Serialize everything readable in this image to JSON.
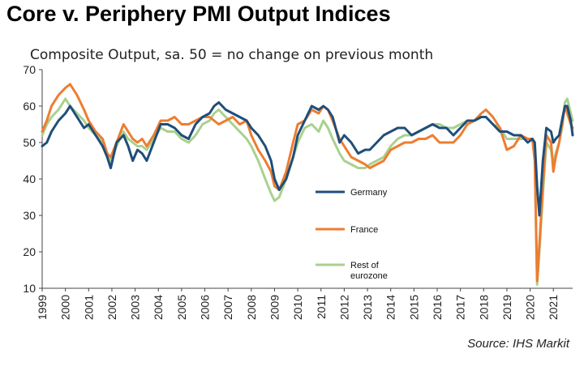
{
  "chart_data": {
    "type": "line",
    "title": "Core v. Periphery PMI Output Indices",
    "subtitle": "Composite Output, sa. 50 = no change on previous month",
    "source": "Source: IHS Markit",
    "ylim": [
      10,
      70
    ],
    "yticks": [
      10,
      20,
      30,
      40,
      50,
      60,
      70
    ],
    "xlim": [
      1999.0,
      2021.83
    ],
    "xticks": [
      "1999",
      "2000",
      "2001",
      "2002",
      "2003",
      "2004",
      "2005",
      "2006",
      "2007",
      "2008",
      "2009",
      "2010",
      "2011",
      "2012",
      "2013",
      "2014",
      "2015",
      "2016",
      "2017",
      "2018",
      "2019",
      "2020",
      "2021"
    ],
    "colors": {
      "Germany": "#1f4e79",
      "France": "#ed7d31",
      "Rest of eurozone": "#a9d18e"
    },
    "series": [
      {
        "name": "Germany",
        "legend": [
          "Germany"
        ],
        "x": [
          1999.0,
          1999.2,
          1999.4,
          1999.7,
          2000.0,
          2000.2,
          2000.5,
          2000.8,
          2001.0,
          2001.3,
          2001.6,
          2001.8,
          2001.95,
          2002.2,
          2002.5,
          2002.7,
          2002.9,
          2003.1,
          2003.3,
          2003.5,
          2003.8,
          2004.1,
          2004.4,
          2004.7,
          2005.0,
          2005.3,
          2005.6,
          2005.9,
          2006.2,
          2006.4,
          2006.6,
          2006.9,
          2007.2,
          2007.5,
          2007.8,
          2008.0,
          2008.3,
          2008.6,
          2008.85,
          2009.0,
          2009.2,
          2009.5,
          2009.8,
          2010.0,
          2010.3,
          2010.6,
          2010.9,
          2011.1,
          2011.3,
          2011.5,
          2011.8,
          2012.0,
          2012.3,
          2012.6,
          2012.9,
          2013.1,
          2013.4,
          2013.7,
          2014.0,
          2014.3,
          2014.6,
          2014.9,
          2015.2,
          2015.5,
          2015.8,
          2016.1,
          2016.4,
          2016.7,
          2017.0,
          2017.3,
          2017.6,
          2017.9,
          2018.1,
          2018.4,
          2018.7,
          2019.0,
          2019.3,
          2019.6,
          2019.9,
          2020.1,
          2020.2,
          2020.3,
          2020.4,
          2020.55,
          2020.7,
          2020.9,
          2021.0,
          2021.1,
          2021.25,
          2021.4,
          2021.5,
          2021.6,
          2021.75,
          2021.83
        ],
        "y": [
          49,
          50,
          53,
          56,
          58,
          60,
          57,
          54,
          55,
          52,
          49,
          46,
          43,
          50,
          52,
          49,
          45,
          48,
          47,
          45,
          50,
          55,
          55,
          54,
          52,
          51,
          55,
          57,
          58,
          60,
          61,
          59,
          58,
          57,
          56,
          54,
          52,
          49,
          45,
          40,
          37,
          40,
          46,
          52,
          56,
          60,
          59,
          60,
          59,
          57,
          50,
          52,
          50,
          47,
          48,
          48,
          50,
          52,
          53,
          54,
          54,
          52,
          53,
          54,
          55,
          54,
          54,
          52,
          54,
          56,
          56,
          57,
          57,
          55,
          53,
          53,
          52,
          52,
          50,
          51,
          50,
          38,
          30,
          45,
          54,
          53,
          50,
          51,
          52,
          57,
          60,
          60,
          56,
          52
        ]
      },
      {
        "name": "France",
        "legend": [
          "France"
        ],
        "x": [
          1999.0,
          1999.2,
          1999.4,
          1999.7,
          2000.0,
          2000.2,
          2000.5,
          2000.8,
          2001.0,
          2001.3,
          2001.6,
          2001.8,
          2001.95,
          2002.2,
          2002.5,
          2002.7,
          2002.9,
          2003.1,
          2003.3,
          2003.5,
          2003.8,
          2004.1,
          2004.4,
          2004.7,
          2005.0,
          2005.3,
          2005.6,
          2005.9,
          2006.2,
          2006.4,
          2006.6,
          2006.9,
          2007.2,
          2007.5,
          2007.8,
          2008.0,
          2008.3,
          2008.6,
          2008.85,
          2009.0,
          2009.2,
          2009.5,
          2009.8,
          2010.0,
          2010.3,
          2010.6,
          2010.9,
          2011.1,
          2011.3,
          2011.5,
          2011.8,
          2012.0,
          2012.3,
          2012.6,
          2012.9,
          2013.1,
          2013.4,
          2013.7,
          2014.0,
          2014.3,
          2014.6,
          2014.9,
          2015.2,
          2015.5,
          2015.8,
          2016.1,
          2016.4,
          2016.7,
          2017.0,
          2017.3,
          2017.6,
          2017.9,
          2018.1,
          2018.4,
          2018.7,
          2019.0,
          2019.3,
          2019.6,
          2019.9,
          2020.1,
          2020.2,
          2020.3,
          2020.4,
          2020.55,
          2020.7,
          2020.9,
          2021.0,
          2021.1,
          2021.25,
          2021.4,
          2021.5,
          2021.6,
          2021.75,
          2021.83
        ],
        "y": [
          53,
          56,
          60,
          63,
          65,
          66,
          63,
          59,
          56,
          53,
          51,
          47,
          46,
          50,
          55,
          53,
          51,
          50,
          51,
          49,
          52,
          56,
          56,
          57,
          55,
          55,
          56,
          57,
          57,
          56,
          55,
          56,
          57,
          55,
          56,
          52,
          48,
          45,
          42,
          38,
          37,
          42,
          50,
          55,
          56,
          59,
          58,
          60,
          59,
          56,
          51,
          49,
          46,
          45,
          44,
          43,
          44,
          45,
          48,
          49,
          50,
          50,
          51,
          51,
          52,
          50,
          50,
          50,
          52,
          55,
          56,
          58,
          59,
          57,
          54,
          48,
          49,
          52,
          51,
          51,
          45,
          12,
          22,
          38,
          52,
          50,
          42,
          46,
          50,
          56,
          60,
          58,
          55,
          54
        ]
      },
      {
        "name": "Rest of eurozone",
        "legend": [
          "Rest of",
          "eurozone"
        ],
        "x": [
          1999.0,
          1999.2,
          1999.4,
          1999.7,
          2000.0,
          2000.2,
          2000.5,
          2000.8,
          2001.0,
          2001.3,
          2001.6,
          2001.8,
          2001.95,
          2002.2,
          2002.5,
          2002.7,
          2002.9,
          2003.1,
          2003.3,
          2003.5,
          2003.8,
          2004.1,
          2004.4,
          2004.7,
          2005.0,
          2005.3,
          2005.6,
          2005.9,
          2006.2,
          2006.4,
          2006.6,
          2006.9,
          2007.2,
          2007.5,
          2007.8,
          2008.0,
          2008.3,
          2008.6,
          2008.85,
          2009.0,
          2009.2,
          2009.5,
          2009.8,
          2010.0,
          2010.3,
          2010.6,
          2010.9,
          2011.1,
          2011.3,
          2011.5,
          2011.8,
          2012.0,
          2012.3,
          2012.6,
          2012.9,
          2013.1,
          2013.4,
          2013.7,
          2014.0,
          2014.3,
          2014.6,
          2014.9,
          2015.2,
          2015.5,
          2015.8,
          2016.1,
          2016.4,
          2016.7,
          2017.0,
          2017.3,
          2017.6,
          2017.9,
          2018.1,
          2018.4,
          2018.7,
          2019.0,
          2019.3,
          2019.6,
          2019.9,
          2020.1,
          2020.2,
          2020.3,
          2020.4,
          2020.55,
          2020.7,
          2020.9,
          2021.0,
          2021.1,
          2021.25,
          2021.4,
          2021.5,
          2021.6,
          2021.75,
          2021.83
        ],
        "y": [
          52,
          55,
          57,
          59,
          62,
          60,
          58,
          56,
          54,
          52,
          50,
          47,
          45,
          49,
          53,
          51,
          50,
          49,
          49,
          48,
          51,
          54,
          53,
          53,
          51,
          50,
          52,
          55,
          56,
          58,
          59,
          57,
          55,
          53,
          51,
          49,
          45,
          40,
          36,
          34,
          35,
          40,
          46,
          50,
          54,
          55,
          53,
          56,
          54,
          51,
          47,
          45,
          44,
          43,
          43,
          44,
          45,
          46,
          49,
          51,
          52,
          52,
          53,
          54,
          55,
          55,
          54,
          54,
          55,
          56,
          56,
          57,
          57,
          55,
          54,
          51,
          51,
          51,
          51,
          51,
          45,
          11,
          20,
          36,
          50,
          48,
          44,
          47,
          50,
          55,
          61,
          62,
          58,
          56
        ]
      }
    ]
  }
}
